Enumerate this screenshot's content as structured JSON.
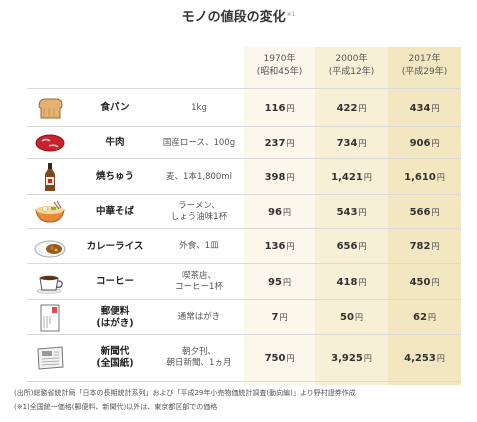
{
  "title": "モノの値段の変化",
  "title_note": "※1",
  "headers": [
    {
      "year": "1970年",
      "era": "(昭和45年)"
    },
    {
      "year": "2000年",
      "era": "(平成12年)"
    },
    {
      "year": "2017年",
      "era": "(平成29年)"
    }
  ],
  "currency": "円",
  "rows": [
    {
      "icon": "bread-icon",
      "name": "食パン",
      "qty": "1kg",
      "prices": [
        "116",
        "422",
        "434"
      ]
    },
    {
      "icon": "beef-icon",
      "name": "牛肉",
      "qty": "国産ロース、100g",
      "prices": [
        "237",
        "734",
        "906"
      ]
    },
    {
      "icon": "shochu-bottle-icon",
      "name": "焼ちゅう",
      "qty": "麦、1本1,800ml",
      "prices": [
        "398",
        "1,421",
        "1,610"
      ]
    },
    {
      "icon": "ramen-bowl-icon",
      "name": "中華そば",
      "qty": "ラーメン、\nしょう油味1杯",
      "prices": [
        "96",
        "543",
        "566"
      ]
    },
    {
      "icon": "curry-rice-icon",
      "name": "カレーライス",
      "qty": "外食、1皿",
      "prices": [
        "136",
        "656",
        "782"
      ]
    },
    {
      "icon": "coffee-cup-icon",
      "name": "コーヒー",
      "qty": "喫茶店、\nコーヒー1杯",
      "prices": [
        "95",
        "418",
        "450"
      ]
    },
    {
      "icon": "postcard-icon",
      "name": "郵便料\n(はがき)",
      "qty": "通常はがき",
      "prices": [
        "7",
        "50",
        "62"
      ]
    },
    {
      "icon": "newspaper-icon",
      "name": "新聞代\n(全国紙)",
      "qty": "朝夕刊、\n朝日新聞、1ヵ月",
      "prices": [
        "750",
        "3,925",
        "4,253"
      ]
    }
  ],
  "footnotes": [
    "(出所)総務省統計局「日本の長期統計系列」および「平成29年小売物価統計調査(動向編)」より野村證券作成",
    "(※1)全国統一価格(郵便料、新聞代)以外は、東京都区部での価格"
  ]
}
